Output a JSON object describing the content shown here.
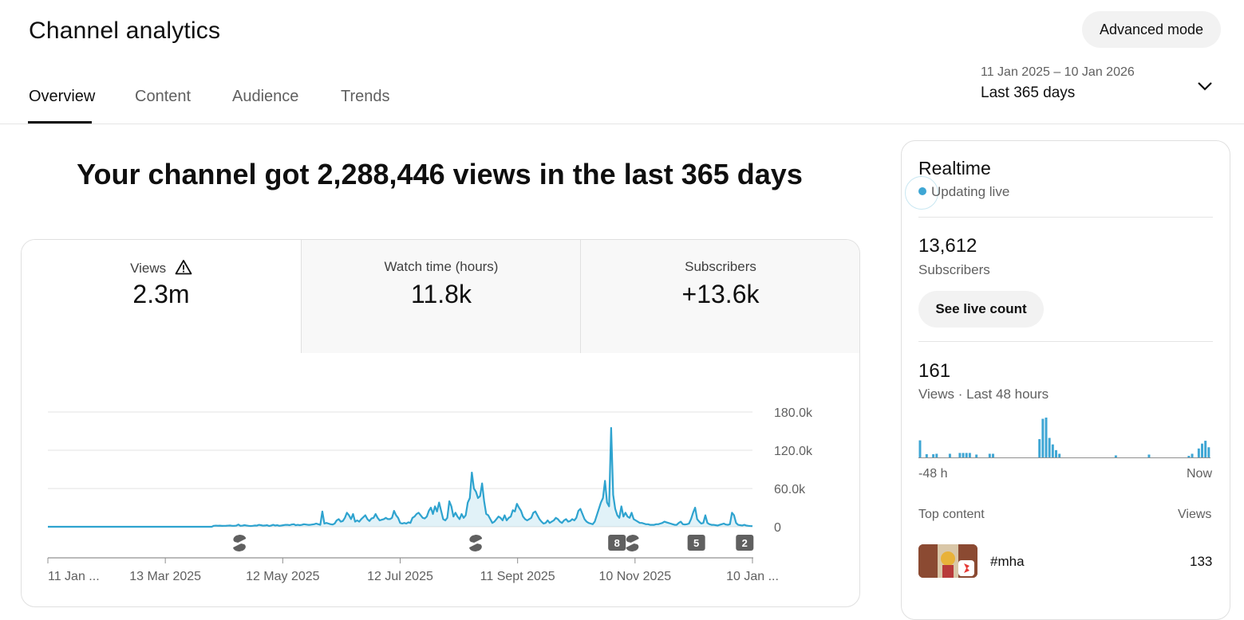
{
  "header": {
    "title": "Channel analytics",
    "advanced_mode_label": "Advanced mode",
    "tabs": [
      {
        "label": "Overview",
        "active": true
      },
      {
        "label": "Content",
        "active": false
      },
      {
        "label": "Audience",
        "active": false
      },
      {
        "label": "Trends",
        "active": false
      }
    ],
    "date_range": {
      "dates": "11 Jan 2025 – 10 Jan 2026",
      "label": "Last 365 days",
      "chevron_icon": "chevron-down-icon"
    }
  },
  "headline": "Your channel got 2,288,446 views in the last 365 days",
  "metrics": [
    {
      "label": "Views",
      "value": "2.3m",
      "warning_icon": "warning-triangle-icon",
      "selected": true
    },
    {
      "label": "Watch time (hours)",
      "value": "11.8k",
      "selected": false
    },
    {
      "label": "Subscribers",
      "value": "+13.6k",
      "selected": false
    }
  ],
  "chart_data": {
    "type": "area",
    "title": "",
    "xlabel": "",
    "ylabel": "",
    "x_tick_labels": [
      "11 Jan ...",
      "13 Mar 2025",
      "12 May 2025",
      "12 Jul 2025",
      "11 Sept 2025",
      "10 Nov 2025",
      "10 Jan ..."
    ],
    "y_tick_labels": [
      "180.0k",
      "120.0k",
      "60.0k",
      "0"
    ],
    "ylim": [
      0,
      180000
    ],
    "grid": true,
    "line_color": "#2ea3cf",
    "series": [
      {
        "x_start": "2025-01-11",
        "x_end": "2026-01-10",
        "values": [
          0,
          0,
          0,
          0,
          0,
          0,
          0,
          0,
          0,
          0,
          0,
          0,
          0,
          0,
          0,
          0,
          0,
          0,
          0,
          0,
          0,
          0,
          0,
          0,
          0,
          0,
          0,
          0,
          0,
          0,
          0,
          0,
          0,
          0,
          0,
          0,
          0,
          0,
          0,
          0,
          0,
          0,
          0,
          0,
          0,
          0,
          0,
          0,
          0,
          0,
          0,
          0,
          0,
          0,
          0,
          0,
          0,
          0,
          0,
          0,
          0,
          0,
          0,
          0,
          0,
          0,
          0,
          0,
          0,
          0,
          0,
          0,
          0,
          0,
          0,
          0,
          0,
          0,
          0,
          0,
          0,
          1500,
          1800,
          1600,
          1700,
          1400,
          1500,
          1600,
          1800,
          2000,
          1500,
          1500,
          1800,
          3500,
          1500,
          1800,
          2500,
          2000,
          1500,
          1200,
          1500,
          2000,
          1800,
          3000,
          2500,
          1800,
          2000,
          2500,
          1200,
          2000,
          3000,
          2000,
          2500,
          1500,
          2000,
          2500,
          3000,
          3000,
          2500,
          3500,
          4000,
          2500,
          3000,
          2500,
          3000,
          4000,
          3500,
          3000,
          3000,
          3500,
          4000,
          5000,
          4000,
          3000,
          24000,
          5000,
          6000,
          5000,
          4000,
          3500,
          5000,
          10000,
          12000,
          8000,
          9000,
          14000,
          22000,
          18000,
          12000,
          20000,
          8000,
          10000,
          8000,
          12000,
          15000,
          18000,
          12000,
          9000,
          13000,
          14000,
          20000,
          14000,
          10000,
          11000,
          12000,
          14000,
          12000,
          12000,
          14000,
          25000,
          18000,
          14000,
          6000,
          5000,
          6000,
          5000,
          7000,
          6000,
          14000,
          16000,
          20000,
          22000,
          18000,
          14000,
          13000,
          16000,
          25000,
          30000,
          20000,
          32000,
          24000,
          38000,
          25000,
          12000,
          10000,
          14000,
          40000,
          32000,
          16000,
          22000,
          16000,
          12000,
          20000,
          14000,
          18000,
          38000,
          45000,
          85000,
          60000,
          55000,
          45000,
          48000,
          68000,
          40000,
          20000,
          18000,
          12000,
          6000,
          8000,
          12000,
          16000,
          14000,
          10000,
          18000,
          10000,
          14000,
          16000,
          26000,
          24000,
          36000,
          30000,
          25000,
          16000,
          12000,
          10000,
          12000,
          14000,
          22000,
          24000,
          18000,
          12000,
          8000,
          5000,
          6000,
          10000,
          6000,
          8000,
          10000,
          14000,
          12000,
          8000,
          6000,
          10000,
          12000,
          8000,
          9000,
          12000,
          10000,
          14000,
          25000,
          28000,
          20000,
          12000,
          8000,
          6000,
          5000,
          4000,
          8000,
          18000,
          28000,
          38000,
          45000,
          72000,
          38000,
          32000,
          155000,
          50000,
          28000,
          18000,
          14000,
          32000,
          16000,
          22000,
          16000,
          14000,
          22000,
          12000,
          10000,
          8000,
          6000,
          6000,
          5000,
          4000,
          4000,
          3000,
          3000,
          3000,
          4000,
          4000,
          5000,
          6000,
          8000,
          7000,
          6000,
          5000,
          4000,
          3000,
          3000,
          6000,
          8000,
          4000,
          3500,
          4000,
          5000,
          12000,
          22000,
          30000,
          12000,
          8000,
          5000,
          6000,
          18000,
          6000,
          4000,
          3000,
          3000,
          2500,
          2000,
          3000,
          4000,
          5000,
          3500,
          3000,
          4000,
          22000,
          18000,
          6000,
          3000,
          2500,
          2000,
          3000,
          2000,
          1500,
          1200,
          1000
        ]
      }
    ],
    "annotations": [
      {
        "type": "shorts-icon",
        "date": "2025-04-20"
      },
      {
        "type": "shorts-icon",
        "date": "2025-08-20"
      },
      {
        "type": "badge",
        "label": "8",
        "date": "2025-11-01"
      },
      {
        "type": "shorts-icon",
        "date": "2025-11-09"
      },
      {
        "type": "badge",
        "label": "5",
        "date": "2025-12-12"
      },
      {
        "type": "badge",
        "label": "2",
        "date": "2026-01-06"
      }
    ]
  },
  "realtime": {
    "title": "Realtime",
    "live_text": "Updating live",
    "subscribers_value": "13,612",
    "subscribers_label": "Subscribers",
    "live_count_button": "See live count",
    "views_value": "161",
    "views_label": "Views · Last 48 hours",
    "bar_color": "#3ea6d4",
    "bars": [
      4.2,
      0,
      0.8,
      0,
      0.8,
      0.9,
      0,
      0,
      0,
      0.9,
      0,
      0,
      1.1,
      1.1,
      1.1,
      1.1,
      0,
      0.7,
      0,
      0,
      0,
      0.9,
      0.9,
      0,
      0,
      0,
      0,
      0,
      0,
      0,
      0,
      0,
      0,
      0,
      0,
      0,
      4.5,
      9.5,
      9.8,
      4.8,
      3.2,
      1.8,
      0.9,
      0,
      0,
      0,
      0,
      0,
      0,
      0,
      0,
      0,
      0,
      0,
      0,
      0,
      0,
      0,
      0,
      0.5,
      0,
      0,
      0,
      0,
      0,
      0,
      0,
      0,
      0,
      0.7,
      0,
      0,
      0,
      0,
      0,
      0,
      0,
      0,
      0,
      0,
      0,
      0.3,
      0.9,
      0,
      2.2,
      3.4,
      4.1,
      2.5
    ],
    "axis_left": "-48 h",
    "axis_right": "Now",
    "top_content_label": "Top content",
    "top_content_views_label": "Views",
    "top_item": {
      "title": "#mha",
      "views": "133",
      "badge_icon": "shorts-badge-icon"
    }
  }
}
